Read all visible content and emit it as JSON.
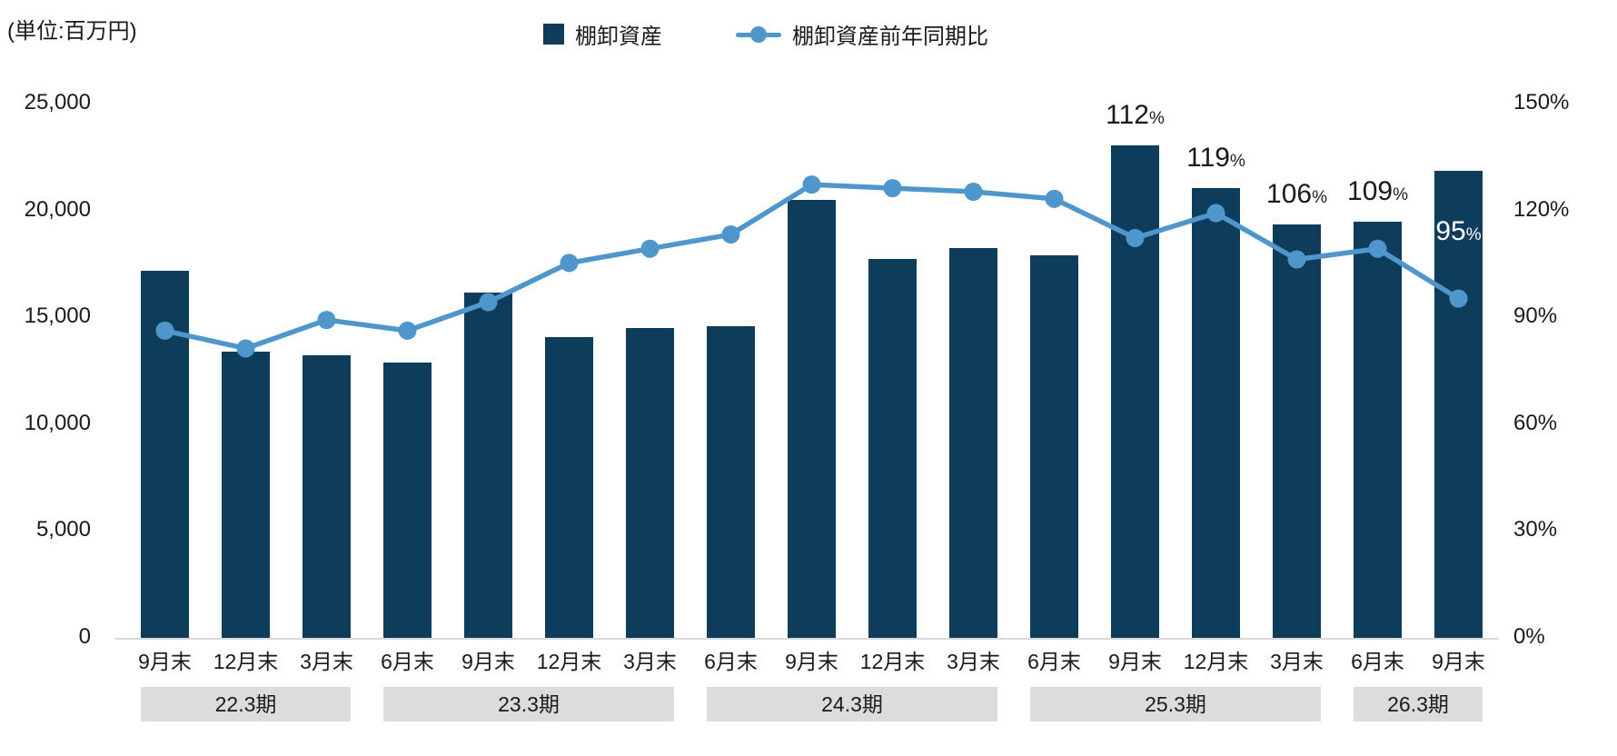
{
  "unit_label": "(単位:百万円)",
  "legend": {
    "bar_label": "棚卸資産",
    "line_label": "棚卸資産前年同期比"
  },
  "colors": {
    "bar": "#0e3d5c",
    "line": "#4e96cb",
    "text": "#1a1a1a",
    "label_on_bar": "#ffffff",
    "period_bg": "#dcdcdc",
    "baseline": "#d9d9d9"
  },
  "chart_data": {
    "type": "bar",
    "subtype": "bar-line-combo",
    "categories": [
      "9月末",
      "12月末",
      "3月末",
      "6月末",
      "9月末",
      "12月末",
      "3月末",
      "6月末",
      "9月末",
      "12月末",
      "3月末",
      "6月末",
      "9月末",
      "12月末",
      "3月末",
      "6月末",
      "9月末"
    ],
    "periods": [
      {
        "label": "22.3期",
        "start_index": 0,
        "end_index": 2
      },
      {
        "label": "23.3期",
        "start_index": 3,
        "end_index": 6
      },
      {
        "label": "24.3期",
        "start_index": 7,
        "end_index": 10
      },
      {
        "label": "25.3期",
        "start_index": 11,
        "end_index": 14
      },
      {
        "label": "26.3期",
        "start_index": 15,
        "end_index": 16
      }
    ],
    "series": [
      {
        "name": "棚卸資産",
        "type": "bar",
        "axis": "left",
        "unit": "百万円",
        "values": [
          17150,
          13350,
          13200,
          12850,
          16100,
          14050,
          14450,
          14550,
          20450,
          17700,
          18200,
          17850,
          23000,
          21000,
          19300,
          19450,
          21800
        ]
      },
      {
        "name": "棚卸資産前年同期比",
        "type": "line",
        "axis": "right",
        "unit": "%",
        "values": [
          86,
          81,
          89,
          86,
          94,
          105,
          109,
          113,
          127,
          126,
          125,
          123,
          112,
          119,
          106,
          109,
          95
        ],
        "point_labels": [
          null,
          null,
          null,
          null,
          null,
          null,
          null,
          null,
          null,
          null,
          null,
          null,
          "112",
          "119",
          "106",
          "109",
          "95"
        ]
      }
    ],
    "left_axis": {
      "min": 0,
      "max": 25000,
      "tick_labels": [
        "0",
        "5,000",
        "10,000",
        "15,000",
        "20,000",
        "25,000"
      ]
    },
    "right_axis": {
      "min": 0,
      "max": 150,
      "tick_labels": [
        "0%",
        "30%",
        "60%",
        "90%",
        "120%",
        "150%"
      ]
    },
    "gridlines": false,
    "legend_position": "top"
  }
}
